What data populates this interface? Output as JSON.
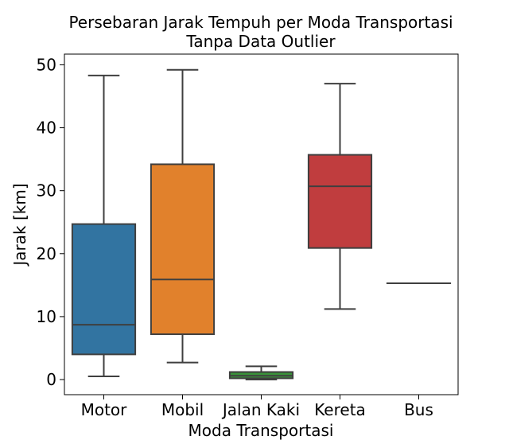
{
  "chart_data": {
    "type": "box",
    "title": "Persebaran Jarak Tempuh per Moda Transportasi",
    "subtitle": "Tanpa Data Outlier",
    "xlabel": "Moda Transportasi",
    "ylabel": "Jarak [km]",
    "ylim": [
      -2.4,
      51.7
    ],
    "yticks": [
      "0",
      "10",
      "20",
      "30",
      "40",
      "50"
    ],
    "grid": false,
    "categories": [
      "Motor",
      "Mobil",
      "Jalan Kaki",
      "Kereta",
      "Bus"
    ],
    "boxes": [
      {
        "category": "Motor",
        "min": 0.5,
        "q1": 4.0,
        "median": 8.7,
        "q3": 24.7,
        "max": 48.3,
        "color": "#3274a1"
      },
      {
        "category": "Mobil",
        "min": 2.7,
        "q1": 7.2,
        "median": 15.9,
        "q3": 34.2,
        "max": 49.2,
        "color": "#e1812c"
      },
      {
        "category": "Jalan Kaki",
        "min": 0.0,
        "q1": 0.2,
        "median": 0.6,
        "q3": 1.2,
        "max": 2.1,
        "color": "#3a923a"
      },
      {
        "category": "Kereta",
        "min": 11.2,
        "q1": 20.9,
        "median": 30.7,
        "q3": 35.7,
        "max": 47.0,
        "color": "#c03d3e"
      },
      {
        "category": "Bus",
        "min": 15.3,
        "q1": 15.3,
        "median": 15.3,
        "q3": 15.3,
        "max": 15.3,
        "color": "#9372b2"
      }
    ]
  }
}
